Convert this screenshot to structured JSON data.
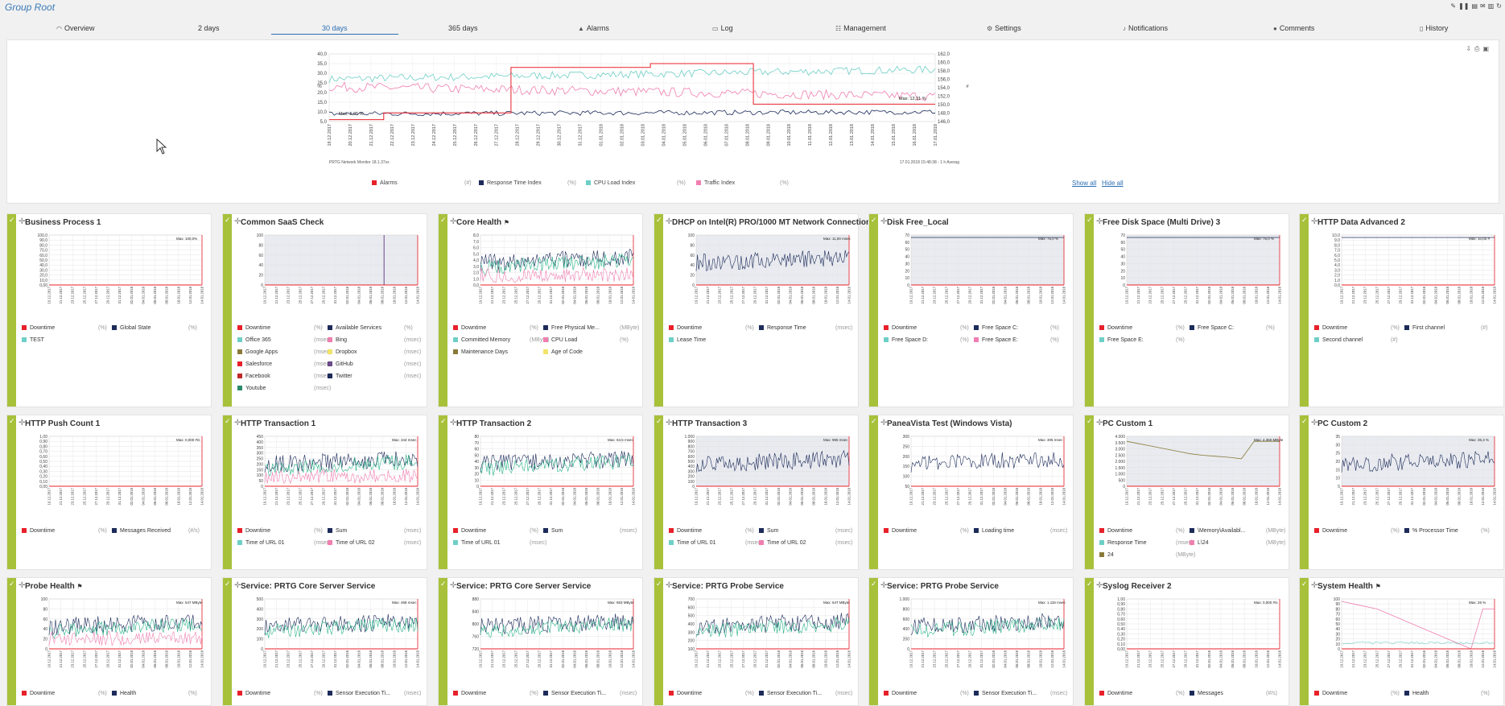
{
  "group_title": "Group Root",
  "top_icons": [
    "wrench-icon",
    "pause-icon",
    "document-icon",
    "mail-icon",
    "chart-icon",
    "refresh-icon"
  ],
  "tabs": [
    {
      "label": "Overview",
      "icon": "gauge-icon"
    },
    {
      "label": "2 days",
      "pre": "2",
      "post": "days"
    },
    {
      "label": "30 days",
      "active": true
    },
    {
      "label": "365 days"
    },
    {
      "label": "Alarms",
      "icon": "warning-icon"
    },
    {
      "label": "Log",
      "icon": "log-icon"
    },
    {
      "label": "Management",
      "icon": "management-icon"
    },
    {
      "label": "Settings",
      "icon": "gear-icon"
    },
    {
      "label": "Notifications",
      "icon": "bell-icon"
    },
    {
      "label": "Comments",
      "icon": "comment-icon"
    },
    {
      "label": "History",
      "icon": "history-icon"
    }
  ],
  "main_graph": {
    "y_left": [
      "40,0",
      "35,0",
      "30,0",
      "25,0",
      "20,0",
      "15,0",
      "10,0",
      "5,0"
    ],
    "y_right": [
      "162,0",
      "160,0",
      "158,0",
      "156,0",
      "154,0",
      "152,0",
      "150,0",
      "148,0",
      "146,0"
    ],
    "left_unit": "%",
    "right_unit": "#",
    "x_labels": [
      "19.12.2017",
      "20.12.2017",
      "21.12.2017",
      "22.12.2017",
      "23.12.2017",
      "24.12.2017",
      "25.12.2017",
      "26.12.2017",
      "27.12.2017",
      "28.12.2017",
      "29.12.2017",
      "30.12.2017",
      "31.12.2017",
      "01.01.2018",
      "02.01.2018",
      "03.01.2018",
      "04.01.2018",
      "05.01.2018",
      "06.01.2018",
      "07.01.2018",
      "08.01.2018",
      "09.01.2018",
      "10.01.2018",
      "11.01.2018",
      "12.01.2018",
      "13.01.2018",
      "14.01.2018",
      "15.01.2018",
      "16.01.2018",
      "17.01.2018"
    ],
    "footer_left": "PRTG Network Monitor 18.1.37xx",
    "footer_right": "17.01.2018 15:48:38 - 1 h Averag",
    "max_label": "Max: 12,31 %",
    "max2_label": "Max: 5,05 %",
    "legend": [
      {
        "name": "Alarms",
        "unit": "(#)",
        "color": "#e8202a"
      },
      {
        "name": "Response Time Index",
        "unit": "(%)",
        "color": "#1c2b5a"
      },
      {
        "name": "CPU Load Index",
        "unit": "(%)",
        "color": "#6ecfc6"
      },
      {
        "name": "Traffic Index",
        "unit": "(%)",
        "color": "#f07fb0"
      }
    ],
    "show_all": "Show all",
    "hide_all": "Hide all"
  },
  "graph_tools": [
    "export-icon",
    "print-icon",
    "settings-icon"
  ],
  "colors": {
    "accent": "#2b6eb3",
    "stripe": "#a7c13a",
    "red": "#e8202a",
    "navy": "#1c2b5a",
    "teal": "#6ecfc6",
    "pink": "#f07fb0"
  },
  "cards": [
    {
      "title": "Business Process 1",
      "flag": false,
      "ticks": [
        "100,0",
        "90,0",
        "80,0",
        "70,0",
        "60,0",
        "50,0",
        "40,0",
        "30,0",
        "20,0",
        "10,0",
        "0,00"
      ],
      "max": "Max: 100,0%",
      "legends": [
        [
          "Downtime",
          "(%)",
          "#e8202a"
        ],
        [
          "Global State",
          "(%)",
          "#1c2b5a"
        ],
        [
          "TEST",
          "",
          "#6ecfc6"
        ]
      ]
    },
    {
      "title": "Common SaaS Check",
      "flag": false,
      "ticks": [
        "100",
        "80",
        "60",
        "40",
        "20",
        "0"
      ],
      "max": "",
      "legends": [
        [
          "Downtime",
          "(%)",
          "#e8202a"
        ],
        [
          "Available Services",
          "(%)",
          "#1c2b5a"
        ],
        [
          "Office 365",
          "(msec)",
          "#6ecfc6"
        ],
        [
          "Bing",
          "(msec)",
          "#f07fb0"
        ],
        [
          "Google Apps",
          "(msec)",
          "#8a7a3a"
        ],
        [
          "Dropbox",
          "(msec)",
          "#f2e36a"
        ],
        [
          "Salesforce",
          "(msec)",
          "#e8202a"
        ],
        [
          "GitHub",
          "(msec)",
          "#6b4a8a"
        ],
        [
          "Facebook",
          "(msec)",
          "#c0282a"
        ],
        [
          "Twitter",
          "(msec)",
          "#1c2b5a"
        ],
        [
          "Youtube",
          "(msec)",
          "#2a8a6a"
        ]
      ]
    },
    {
      "title": "Core Health",
      "flag": true,
      "ticks": [
        "8,0",
        "7,0",
        "6,0",
        "5,0",
        "4,0",
        "3,0",
        "2,0",
        "1,0",
        "0,0"
      ],
      "max": "",
      "legends": [
        [
          "Downtime",
          "(%)",
          "#e8202a"
        ],
        [
          "Free Physical Me...",
          "(MByte)",
          "#1c2b5a"
        ],
        [
          "Committed Memory",
          "(MByte)",
          "#6ecfc6"
        ],
        [
          "CPU Load",
          "(%)",
          "#f07fb0"
        ],
        [
          "Maintenance Days",
          "",
          "#8a7a3a"
        ],
        [
          "Age of Code",
          "",
          "#f2e36a"
        ]
      ]
    },
    {
      "title": "DHCP on Intel(R) PRO/1000 MT Network Connection",
      "flag": false,
      "ticks": [
        "100",
        "80",
        "60",
        "40",
        "20",
        "0"
      ],
      "max": "Max: 11,00 msec",
      "legends": [
        [
          "Downtime",
          "(%)",
          "#e8202a"
        ],
        [
          "Response Time",
          "(msec)",
          "#1c2b5a"
        ],
        [
          "Lease Time",
          "",
          "#6ecfc6"
        ]
      ]
    },
    {
      "title": "Disk Free_Local",
      "flag": false,
      "ticks": [
        "70",
        "60",
        "50",
        "40",
        "30",
        "20",
        "10",
        "0"
      ],
      "max": "Max: 75,0 %",
      "legends": [
        [
          "Downtime",
          "(%)",
          "#e8202a"
        ],
        [
          "Free Space C:",
          "(%)",
          "#1c2b5a"
        ],
        [
          "Free Space D:",
          "(%)",
          "#6ecfc6"
        ],
        [
          "Free Space E:",
          "(%)",
          "#f07fb0"
        ]
      ]
    },
    {
      "title": "Free Disk Space (Multi Drive) 3",
      "flag": false,
      "ticks": [
        "70",
        "60",
        "50",
        "40",
        "30",
        "20",
        "10",
        "0"
      ],
      "max": "Max: 75,0 %",
      "legends": [
        [
          "Downtime",
          "(%)",
          "#e8202a"
        ],
        [
          "Free Space C:",
          "(%)",
          "#1c2b5a"
        ],
        [
          "Free Space E:",
          "(%)",
          "#6ecfc6"
        ]
      ]
    },
    {
      "title": "HTTP Data Advanced 2",
      "flag": false,
      "ticks": [
        "10,0",
        "9,0",
        "8,0",
        "7,0",
        "6,0",
        "5,0",
        "4,0",
        "3,0",
        "2,0",
        "1,0",
        "0,0"
      ],
      "max": "Max: 10,00 #",
      "legends": [
        [
          "Downtime",
          "(%)",
          "#e8202a"
        ],
        [
          "First channel",
          "(#)",
          "#1c2b5a"
        ],
        [
          "Second channel",
          "(#)",
          "#6ecfc6"
        ]
      ]
    },
    {
      "title": "HTTP Push Count 1",
      "flag": false,
      "ticks": [
        "1,00",
        "0,90",
        "0,80",
        "0,70",
        "0,60",
        "0,50",
        "0,40",
        "0,30",
        "0,20",
        "0,10",
        "0,00"
      ],
      "max": "Max: 0,000 #/s",
      "legends": [
        [
          "Downtime",
          "(%)",
          "#e8202a"
        ],
        [
          "Messages Received",
          "(#/s)",
          "#1c2b5a"
        ]
      ]
    },
    {
      "title": "HTTP Transaction 1",
      "flag": false,
      "ticks": [
        "450",
        "400",
        "350",
        "300",
        "250",
        "200",
        "150",
        "100",
        "50",
        "0"
      ],
      "max": "Max: 344 msec",
      "legends": [
        [
          "Downtime",
          "(%)",
          "#e8202a"
        ],
        [
          "Sum",
          "(msec)",
          "#1c2b5a"
        ],
        [
          "Time of URL 01",
          "(msec)",
          "#6ecfc6"
        ],
        [
          "Time of URL 02",
          "(msec)",
          "#f07fb0"
        ]
      ]
    },
    {
      "title": "HTTP Transaction 2",
      "flag": false,
      "ticks": [
        "80",
        "70",
        "60",
        "50",
        "40",
        "30",
        "20",
        "10",
        "0"
      ],
      "max": "Max: 63,5 msec",
      "legends": [
        [
          "Downtime",
          "(%)",
          "#e8202a"
        ],
        [
          "Sum",
          "(msec)",
          "#1c2b5a"
        ],
        [
          "Time of URL 01",
          "(msec)",
          "#6ecfc6"
        ]
      ]
    },
    {
      "title": "HTTP Transaction 3",
      "flag": false,
      "ticks": [
        "1.000",
        "900",
        "800",
        "700",
        "600",
        "500",
        "400",
        "300",
        "200",
        "100",
        "0"
      ],
      "max": "Max: 965 msec",
      "legends": [
        [
          "Downtime",
          "(%)",
          "#e8202a"
        ],
        [
          "Sum",
          "(msec)",
          "#1c2b5a"
        ],
        [
          "Time of URL 01",
          "(msec)",
          "#6ecfc6"
        ],
        [
          "Time of URL 02",
          "(msec)",
          "#f07fb0"
        ]
      ]
    },
    {
      "title": "PaneaVista Test (Windows Vista)",
      "flag": false,
      "ticks": [
        "300",
        "250",
        "200",
        "150",
        "100",
        "50"
      ],
      "max": "Max: 305 msec",
      "legends": [
        [
          "Downtime",
          "(%)",
          "#e8202a"
        ],
        [
          "Loading time",
          "(msec)",
          "#1c2b5a"
        ]
      ]
    },
    {
      "title": "PC Custom 1",
      "flag": false,
      "ticks": [
        "4.000",
        "3.500",
        "3.000",
        "2.500",
        "2.000",
        "1.500",
        "1.000",
        "500",
        "0"
      ],
      "max": "Max: 4.360 MByte",
      "legends": [
        [
          "Downtime",
          "(%)",
          "#e8202a"
        ],
        [
          "\\Memory\\Availabl...",
          "(MByte)",
          "#1c2b5a"
        ],
        [
          "Response Time",
          "(msec)",
          "#6ecfc6"
        ],
        [
          "L\\24",
          "(MByte)",
          "#f07fb0"
        ],
        [
          "24",
          "(MByte)",
          "#8a7a3a"
        ]
      ]
    },
    {
      "title": "PC Custom 2",
      "flag": false,
      "ticks": [
        "35",
        "30",
        "25",
        "20",
        "15",
        "10",
        "5"
      ],
      "max": "Max: 35,3 %",
      "legends": [
        [
          "Downtime",
          "(%)",
          "#e8202a"
        ],
        [
          "% Processor Time",
          "(%)",
          "#1c2b5a"
        ]
      ]
    },
    {
      "title": "Probe Health",
      "flag": true,
      "ticks": [
        "100",
        "80",
        "60",
        "40",
        "20",
        "0"
      ],
      "max": "Max: 547 MByte",
      "legends": [
        [
          "Downtime",
          "(%)",
          "#e8202a"
        ],
        [
          "Health",
          "(%)",
          "#1c2b5a"
        ]
      ]
    },
    {
      "title": "Service: PRTG Core Server Service",
      "flag": false,
      "ticks": [
        "500",
        "400",
        "300",
        "200",
        "100",
        "0"
      ],
      "max": "Max: 468 msec",
      "legends": [
        [
          "Downtime",
          "(%)",
          "#e8202a"
        ],
        [
          "Sensor Execution Ti...",
          "(msec)",
          "#1c2b5a"
        ]
      ]
    },
    {
      "title": "Service: PRTG Core Server Service",
      "flag": false,
      "ticks": [
        "880",
        "840",
        "800",
        "760",
        "720"
      ],
      "max": "Max: 863 MByte",
      "legends": [
        [
          "Downtime",
          "(%)",
          "#e8202a"
        ],
        [
          "Sensor Execution Ti...",
          "(msec)",
          "#1c2b5a"
        ]
      ]
    },
    {
      "title": "Service: PRTG Probe Service",
      "flag": false,
      "ticks": [
        "700",
        "600",
        "500",
        "400",
        "300",
        "200",
        "100"
      ],
      "max": "Max: 647 MByte",
      "legends": [
        [
          "Downtime",
          "(%)",
          "#e8202a"
        ],
        [
          "Sensor Execution Ti...",
          "(msec)",
          "#1c2b5a"
        ]
      ]
    },
    {
      "title": "Service: PRTG Probe Service",
      "flag": false,
      "ticks": [
        "1.000",
        "800",
        "600",
        "400",
        "200",
        "0"
      ],
      "max": "Max: 1.115 msec",
      "legends": [
        [
          "Downtime",
          "(%)",
          "#e8202a"
        ],
        [
          "Sensor Execution Ti...",
          "(msec)",
          "#1c2b5a"
        ]
      ]
    },
    {
      "title": "Syslog Receiver 2",
      "flag": false,
      "ticks": [
        "1,00",
        "0,90",
        "0,80",
        "0,70",
        "0,60",
        "0,50",
        "0,40",
        "0,30",
        "0,20",
        "0,10",
        "0,00"
      ],
      "max": "Max: 0,000 #/s",
      "legends": [
        [
          "Downtime",
          "(%)",
          "#e8202a"
        ],
        [
          "Messages",
          "(#/s)",
          "#1c2b5a"
        ]
      ]
    },
    {
      "title": "System Health",
      "flag": true,
      "ticks": [
        "100",
        "90",
        "80",
        "70",
        "60",
        "50",
        "40",
        "30",
        "20",
        "10",
        "0"
      ],
      "max": "Max: 26 %",
      "legends": [
        [
          "Downtime",
          "(%)",
          "#e8202a"
        ],
        [
          "Health",
          "(%)",
          "#1c2b5a"
        ]
      ]
    }
  ]
}
